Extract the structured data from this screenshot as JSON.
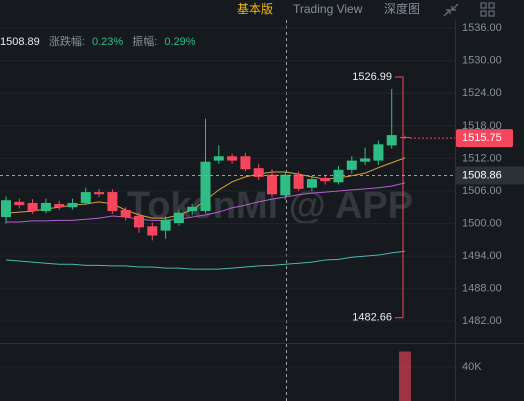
{
  "toolbar": {
    "tabs": [
      "基本版",
      "Trading View",
      "深度图"
    ]
  },
  "chart_data": {
    "type": "candlestick",
    "info_price": 1508.89,
    "stats": {
      "labels": [
        "涨跌幅:",
        "振幅:"
      ],
      "values": [
        0.23,
        0.29
      ],
      "value_labels": [
        "0.23%",
        "0.29%"
      ]
    },
    "watermark": "TokenMi @ APP",
    "open": [
      1501.2,
      1504.0,
      1503.8,
      1502.3,
      1503.6,
      1503.0,
      1503.8,
      1505.8,
      1505.8,
      1502.5,
      1501.4,
      1499.5,
      1498.7,
      1500.1,
      1502.3,
      1502.3,
      1511.6,
      1512.4,
      1512.4,
      1510.2,
      1509.0,
      1505.2,
      1509.0,
      1506.6,
      1508.4,
      1507.6,
      1509.9,
      1511.4,
      1511.6,
      1514.4,
      1515.95
    ],
    "high": [
      1505.0,
      1504.6,
      1504.5,
      1504.6,
      1504.2,
      1504.6,
      1506.6,
      1506.4,
      1506.3,
      1503.0,
      1502.0,
      1500.2,
      1501.3,
      1502.6,
      1503.6,
      1519.3,
      1514.4,
      1512.9,
      1513.0,
      1511.0,
      1510.0,
      1509.6,
      1509.6,
      1508.8,
      1509.0,
      1510.6,
      1512.4,
      1514.0,
      1515.3,
      1524.8,
      1516.2
    ],
    "low": [
      1500.0,
      1502.8,
      1501.8,
      1501.9,
      1502.5,
      1502.6,
      1503.4,
      1504.9,
      1501.8,
      1500.6,
      1498.3,
      1496.9,
      1497.2,
      1499.6,
      1501.5,
      1501.9,
      1511.0,
      1511.0,
      1509.6,
      1508.0,
      1504.8,
      1504.4,
      1506.0,
      1506.0,
      1507.2,
      1507.2,
      1509.2,
      1510.8,
      1510.8,
      1513.8,
      1515.6
    ],
    "close": [
      1504.3,
      1503.4,
      1502.3,
      1503.8,
      1503.0,
      1503.8,
      1505.8,
      1505.4,
      1502.3,
      1501.2,
      1499.3,
      1497.8,
      1500.7,
      1502.0,
      1503.1,
      1511.4,
      1512.4,
      1511.6,
      1510.0,
      1508.6,
      1505.4,
      1509.0,
      1506.4,
      1508.2,
      1507.8,
      1509.9,
      1511.6,
      1512.0,
      1514.6,
      1516.3,
      1515.75
    ],
    "up_color": "#2ebd85",
    "down_color": "#f6465d",
    "moving_averages": [
      {
        "color": "#d9a03a",
        "values": [
          1501.9,
          1502.1,
          1502.3,
          1502.7,
          1503.0,
          1503.4,
          1503.6,
          1504.0,
          1503.6,
          1502.5,
          1501.6,
          1501.0,
          1501.0,
          1501.6,
          1502.5,
          1504.3,
          1506.2,
          1507.7,
          1508.6,
          1509.1,
          1509.5,
          1509.5,
          1509.1,
          1508.6,
          1508.2,
          1508.4,
          1508.8,
          1509.3,
          1510.3,
          1511.2,
          1512.1
        ]
      },
      {
        "color": "#b45fd2",
        "values": [
          1500.3,
          1500.3,
          1500.5,
          1500.5,
          1500.6,
          1500.6,
          1500.8,
          1501.0,
          1501.4,
          1501.2,
          1500.8,
          1500.6,
          1500.6,
          1500.8,
          1501.2,
          1501.6,
          1502.1,
          1502.9,
          1503.4,
          1504.0,
          1504.5,
          1504.9,
          1505.3,
          1505.6,
          1505.8,
          1506.0,
          1506.2,
          1506.4,
          1506.6,
          1506.9,
          1507.5
        ]
      },
      {
        "color": "#48b8b0",
        "values": [
          1493.3,
          1493.1,
          1492.9,
          1492.7,
          1492.5,
          1492.5,
          1492.3,
          1492.3,
          1492.2,
          1492.2,
          1492.0,
          1492.0,
          1491.8,
          1491.8,
          1491.6,
          1491.6,
          1491.6,
          1491.8,
          1492.0,
          1492.2,
          1492.3,
          1492.5,
          1492.7,
          1492.9,
          1493.3,
          1493.4,
          1493.8,
          1494.0,
          1494.2,
          1494.6,
          1494.9
        ]
      }
    ],
    "ylim": [
      1478,
      1537.5
    ],
    "yticks": [
      {
        "value": 1482,
        "label": "1482.00"
      },
      {
        "value": 1488,
        "label": "1488.00"
      },
      {
        "value": 1494,
        "label": "1494.00"
      },
      {
        "value": 1500,
        "label": "1500.00"
      },
      {
        "value": 1506,
        "label": "1506.00"
      },
      {
        "value": 1512,
        "label": "1512.00"
      },
      {
        "value": 1518,
        "label": "1518.00"
      },
      {
        "value": 1524,
        "label": "1524.00"
      },
      {
        "value": 1530,
        "label": "1530.00"
      },
      {
        "value": 1536,
        "label": "1536.00"
      }
    ],
    "volume": {
      "values": [
        null,
        null,
        null,
        null,
        null,
        null,
        null,
        null,
        null,
        null,
        null,
        null,
        null,
        null,
        null,
        null,
        null,
        null,
        null,
        null,
        null,
        null,
        null,
        null,
        null,
        null,
        null,
        null,
        null,
        null,
        58000
      ],
      "y2lim": [
        0,
        68000
      ],
      "y2ticks": [
        {
          "value": 40000,
          "label": "40K"
        }
      ]
    },
    "range_high": 1526.99,
    "range_low": 1482.66,
    "last_price": 1515.75,
    "crosshair_price": 1508.86
  }
}
